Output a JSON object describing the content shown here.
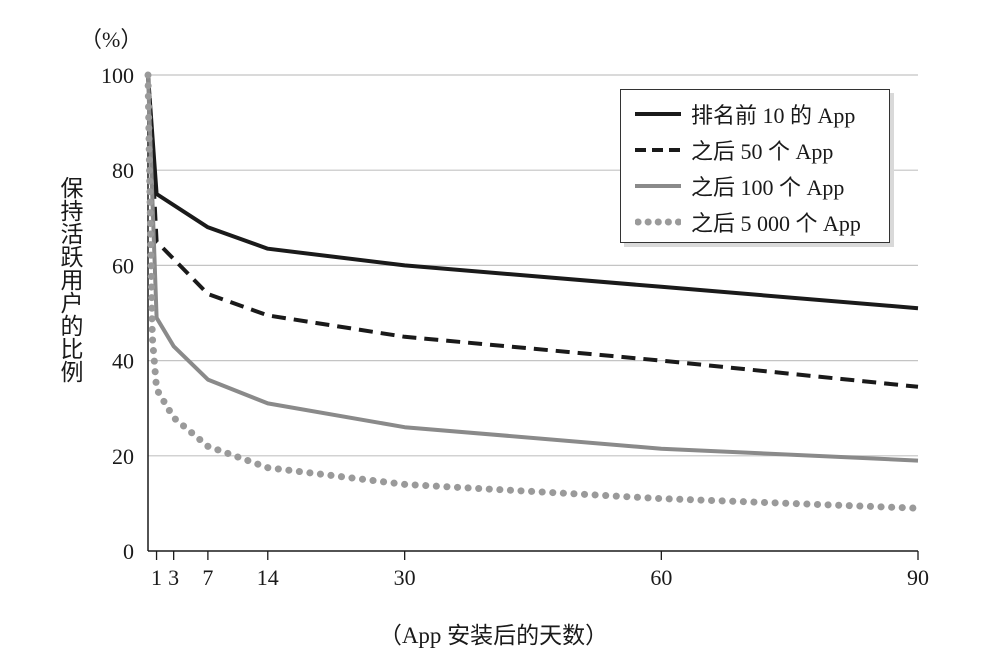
{
  "chart_data": {
    "type": "line",
    "unit_label": "（%）",
    "ylabel": "保持活跃用户的比例",
    "xlabel": "（App 安装后的天数）",
    "xlim": [
      0,
      90
    ],
    "ylim": [
      0,
      100
    ],
    "x_ticks": [
      1,
      3,
      7,
      14,
      30,
      60,
      90
    ],
    "y_ticks": [
      0,
      20,
      40,
      60,
      80,
      100
    ],
    "grid": "horizontal",
    "legend_position": "top-right",
    "series": [
      {
        "name": "排名前 10 的 App",
        "color": "#1a1a1a",
        "style": "solid",
        "x": [
          0,
          1,
          7,
          14,
          30,
          60,
          90
        ],
        "y": [
          100,
          75,
          68,
          63.5,
          60,
          55.5,
          51
        ]
      },
      {
        "name": "之后 50 个 App",
        "color": "#1a1a1a",
        "style": "dashed",
        "x": [
          0,
          1,
          7,
          14,
          30,
          60,
          90
        ],
        "y": [
          100,
          65,
          54,
          49.5,
          45,
          40,
          34.5
        ]
      },
      {
        "name": "之后 100 个 App",
        "color": "#8a8a8a",
        "style": "solid",
        "x": [
          0,
          1,
          3,
          7,
          14,
          30,
          60,
          90
        ],
        "y": [
          100,
          49,
          43,
          36,
          31,
          26,
          21.5,
          19
        ]
      },
      {
        "name": "之后 5 000 个 App",
        "color": "#9a9a9a",
        "style": "dotted",
        "x": [
          0,
          0.5,
          1,
          3,
          7,
          14,
          30,
          60,
          90
        ],
        "y": [
          100,
          45,
          34,
          28,
          22,
          17.5,
          14,
          11,
          9
        ]
      }
    ]
  }
}
